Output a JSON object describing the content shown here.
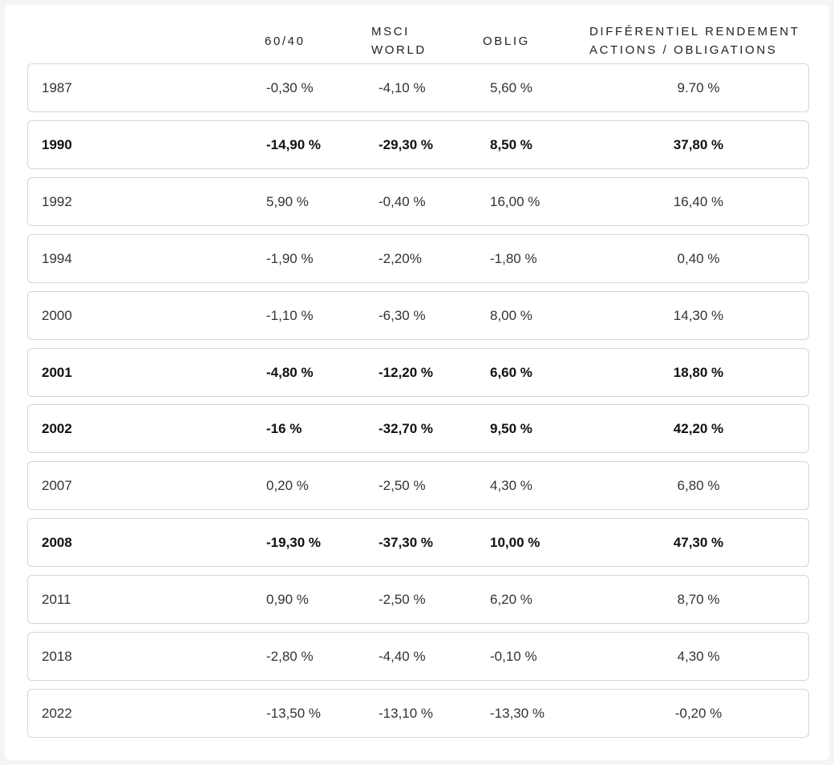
{
  "table": {
    "headers": {
      "year": "",
      "col_6040": "60/40",
      "msci": "MSCI\nWORLD",
      "oblig": "OBLIG",
      "diff": "DIFFÉRENTIEL RENDEMENT\nACTIONS / OBLIGATIONS"
    },
    "rows": [
      {
        "year": "1987",
        "p6040": "-0,30 %",
        "msci": "-4,10 %",
        "oblig": "5,60 %",
        "diff": "9.70 %",
        "bold": false
      },
      {
        "year": "1990",
        "p6040": "-14,90 %",
        "msci": "-29,30 %",
        "oblig": "8,50 %",
        "diff": "37,80 %",
        "bold": true
      },
      {
        "year": "1992",
        "p6040": "5,90 %",
        "msci": "-0,40 %",
        "oblig": "16,00 %",
        "diff": "16,40 %",
        "bold": false
      },
      {
        "year": "1994",
        "p6040": "-1,90 %",
        "msci": "-2,20%",
        "oblig": "-1,80 %",
        "diff": "0,40 %",
        "bold": false
      },
      {
        "year": "2000",
        "p6040": "-1,10 %",
        "msci": "-6,30 %",
        "oblig": "8,00 %",
        "diff": "14,30 %",
        "bold": false
      },
      {
        "year": "2001",
        "p6040": "-4,80 %",
        "msci": "-12,20 %",
        "oblig": "6,60 %",
        "diff": "18,80 %",
        "bold": true
      },
      {
        "year": "2002",
        "p6040": "-16 %",
        "msci": "-32,70 %",
        "oblig": "9,50 %",
        "diff": "42,20 %",
        "bold": true
      },
      {
        "year": "2007",
        "p6040": "0,20 %",
        "msci": "-2,50 %",
        "oblig": "4,30 %",
        "diff": "6,80 %",
        "bold": false
      },
      {
        "year": "2008",
        "p6040": "-19,30 %",
        "msci": "-37,30 %",
        "oblig": "10,00 %",
        "diff": "47,30 %",
        "bold": true
      },
      {
        "year": "2011",
        "p6040": "0,90 %",
        "msci": "-2,50 %",
        "oblig": "6,20 %",
        "diff": "8,70 %",
        "bold": false
      },
      {
        "year": "2018",
        "p6040": "-2,80 %",
        "msci": "-4,40 %",
        "oblig": "-0,10 %",
        "diff": "4,30 %",
        "bold": false
      },
      {
        "year": "2022",
        "p6040": "-13,50 %",
        "msci": "-13,10 %",
        "oblig": "-13,30 %",
        "diff": "-0,20 %",
        "bold": false
      }
    ]
  }
}
